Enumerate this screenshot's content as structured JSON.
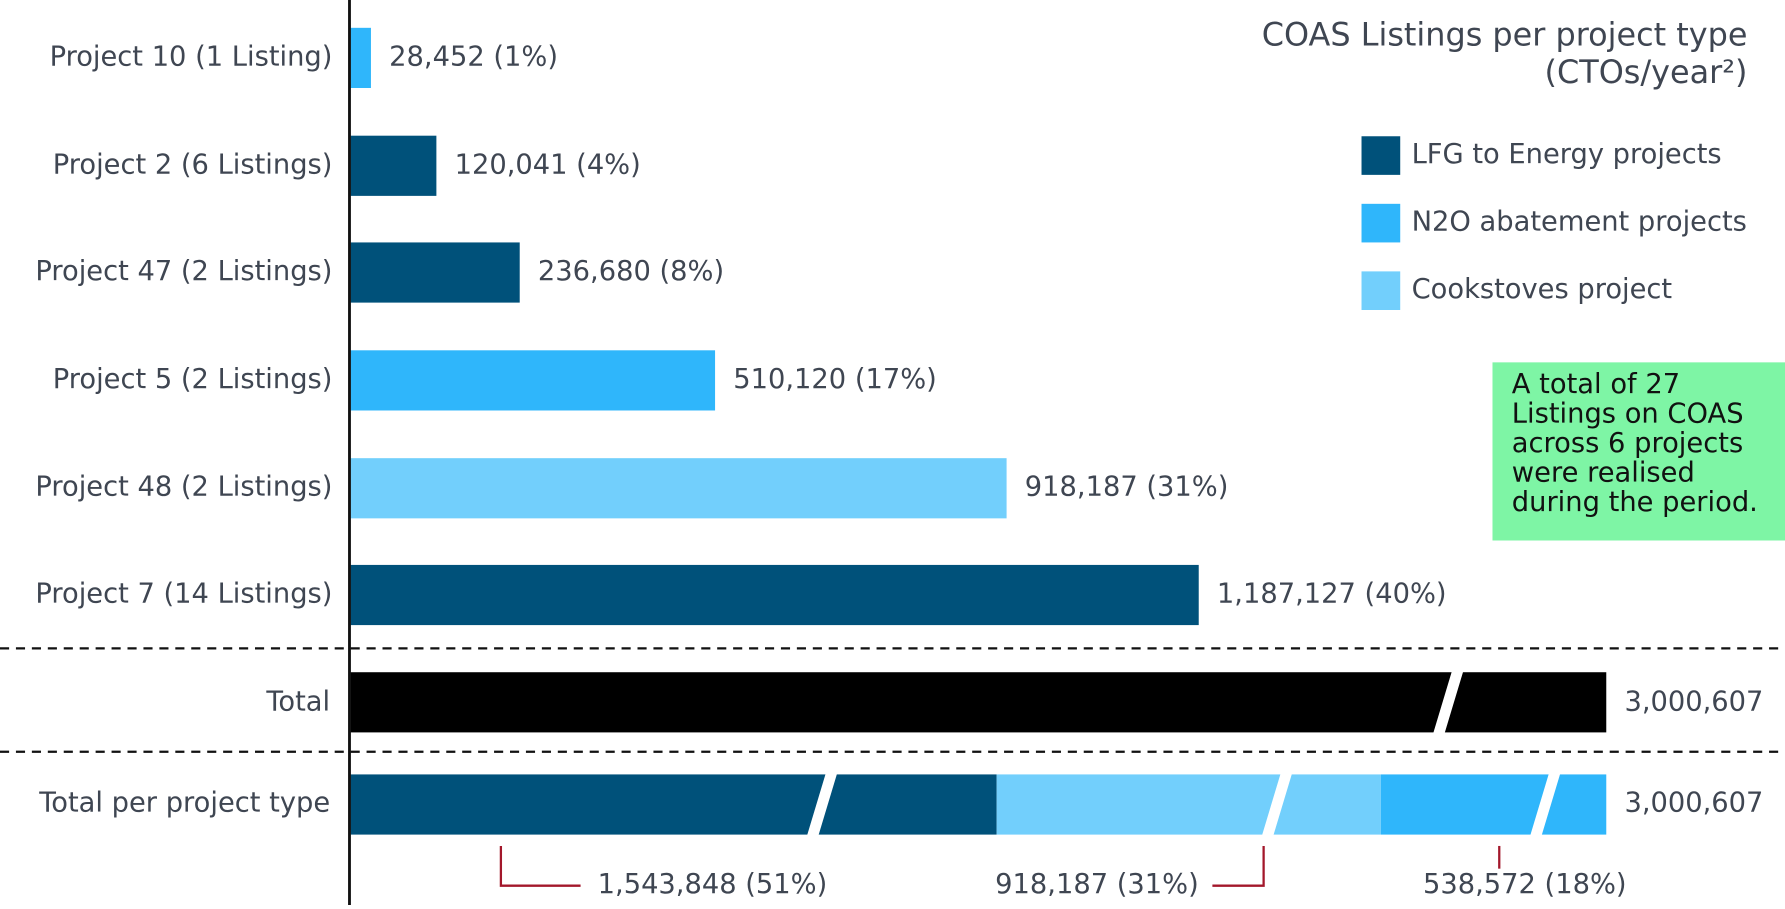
{
  "chart_data": {
    "type": "bar",
    "orientation": "horizontal",
    "title": "COAS Listings per project type",
    "subtitle": "(CTOs/year²)",
    "categories": [
      "Project 10 (1 Listing)",
      "Project 2 (6 Listings)",
      "Project 47 (2 Listings)",
      "Project 5 (2 Listings)",
      "Project 48 (2 Listings)",
      "Project 7 (14 Listings)"
    ],
    "series": [
      {
        "name": "LFG to Energy projects",
        "color": "#00517a",
        "values": [
          null,
          120041,
          236680,
          null,
          null,
          1187127
        ],
        "value_labels": [
          null,
          "120,041 (4%)",
          "236,680 (8%)",
          null,
          null,
          "1,187,127 (40%)"
        ]
      },
      {
        "name": "N2O abatement projects",
        "color": "#2fb6fb",
        "values": [
          28452,
          null,
          null,
          510120,
          null,
          null
        ],
        "value_labels": [
          "28,452 (1%)",
          null,
          null,
          "510,120 (17%)",
          null,
          null
        ]
      },
      {
        "name": "Cookstoves project",
        "color": "#72cffc",
        "values": [
          null,
          null,
          null,
          null,
          918187,
          null
        ],
        "value_labels": [
          null,
          null,
          null,
          null,
          "918,187 (31%)",
          null
        ]
      }
    ],
    "total": {
      "label": "Total",
      "value": 3000607,
      "value_label": "3,000,607",
      "color": "#000000"
    },
    "type_total": {
      "label": "Total per project type",
      "value": 3000607,
      "value_label": "3,000,607",
      "segments": [
        {
          "value": 1543848,
          "value_label": "1,543,848 (51%)",
          "color": "#00517a"
        },
        {
          "value": 918187,
          "value_label": "918,187 (31%)",
          "color": "#72cffc"
        },
        {
          "value": 538572,
          "value_label": "538,572 (18%)",
          "color": "#2fb6fb"
        }
      ]
    },
    "annotation": "A total of 27 Listings on COAS across 6 projects were realised during the period."
  }
}
